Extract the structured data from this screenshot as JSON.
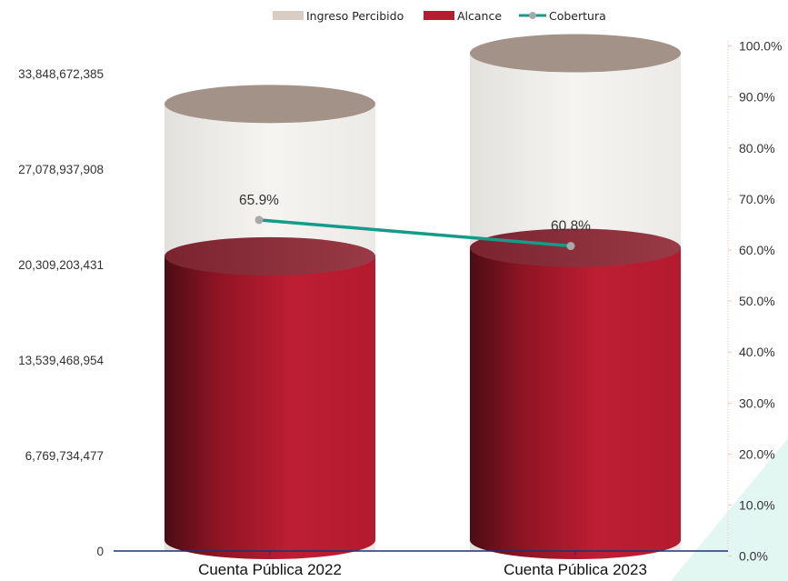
{
  "chart_data": {
    "type": "bar",
    "style": "3d-cylinder",
    "categories": [
      "Cuenta Pública 2022",
      "Cuenta Pública 2023"
    ],
    "series": [
      {
        "name": "Ingreso Percibido",
        "type": "bar",
        "axis": "left",
        "color": "#d8ccc3",
        "values": [
          31700000000,
          35300000000
        ]
      },
      {
        "name": "Alcance",
        "type": "bar",
        "axis": "left",
        "color": "#b51c30",
        "values": [
          20900000000,
          21500000000
        ]
      },
      {
        "name": "Cobertura",
        "type": "line",
        "axis": "right",
        "color": "#149b8a",
        "marker_color": "#a9a9a9",
        "values": [
          0.659,
          0.608
        ],
        "data_labels": [
          "65.9%",
          "60.8%"
        ]
      }
    ],
    "y_left": {
      "ylim": [
        0,
        33848672385
      ],
      "tick_values": [
        0,
        6769734477,
        13539468954,
        20309203431,
        27078937908,
        33848672385
      ],
      "tick_labels": [
        "0",
        "6,769,734,477",
        "13,539,468,954",
        "20,309,203,431",
        "27,078,937,908",
        "33,848,672,385"
      ]
    },
    "y_right": {
      "ylim": [
        0,
        1
      ],
      "tick_values": [
        0,
        0.1,
        0.2,
        0.3,
        0.4,
        0.5,
        0.6,
        0.7,
        0.8,
        0.9,
        1.0
      ],
      "tick_labels": [
        "0.0%",
        "10.0%",
        "20.0%",
        "30.0%",
        "40.0%",
        "50.0%",
        "60.0%",
        "70.0%",
        "80.0%",
        "90.0%",
        "100.0%"
      ]
    },
    "legend": {
      "position": "top",
      "entries": [
        "Ingreso Percibido",
        "Alcance",
        "Cobertura"
      ]
    },
    "grid": false
  }
}
